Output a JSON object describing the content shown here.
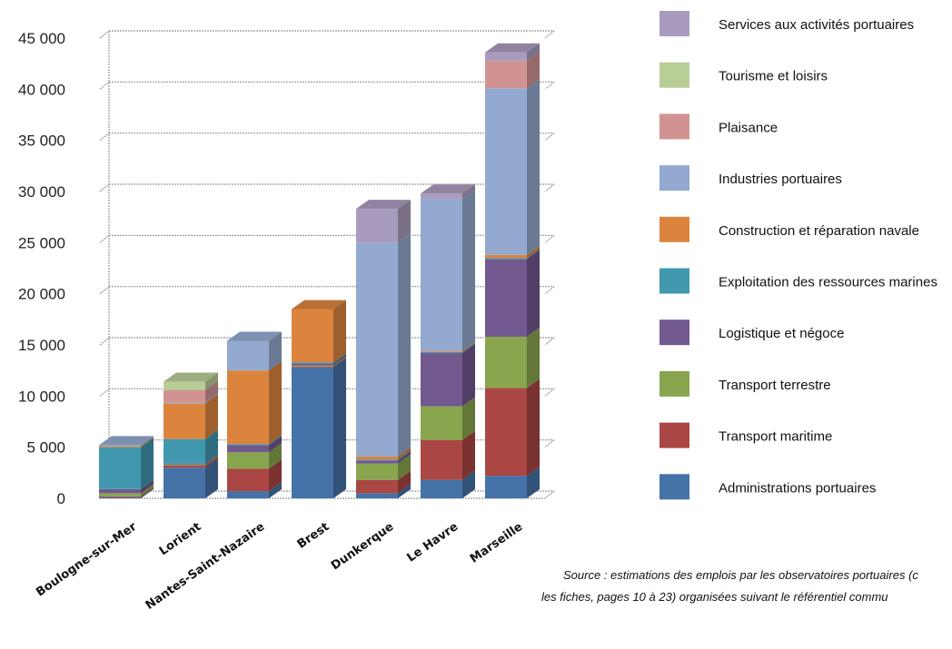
{
  "chart_data": {
    "type": "bar",
    "stacked": true,
    "three_d": true,
    "categories": [
      "Boulogne-sur-Mer",
      "Lorient",
      "Nantes-Saint-Nazaire",
      "Brest",
      "Dunkerque",
      "Le Havre",
      "Marseille"
    ],
    "ylim": [
      0,
      45000
    ],
    "yticks": [
      "0",
      "5 000",
      "10 000",
      "15 000",
      "20 000",
      "25 000",
      "30 000",
      "35 000",
      "40 000",
      "45 000"
    ],
    "grid": true,
    "legend_position": "right",
    "series": [
      {
        "name": "Administrations portuaires",
        "color": "#4572A7",
        "values": [
          100,
          3000,
          700,
          12800,
          500,
          1800,
          2200
        ]
      },
      {
        "name": "Transport maritime",
        "color": "#AA4643",
        "values": [
          100,
          200,
          2200,
          100,
          1300,
          3900,
          8600
        ]
      },
      {
        "name": "Transport terrestre",
        "color": "#89A54E",
        "values": [
          300,
          100,
          1600,
          100,
          1600,
          3300,
          5000
        ]
      },
      {
        "name": "Logistique et négoce",
        "color": "#71588F",
        "values": [
          400,
          100,
          700,
          200,
          300,
          5200,
          7600
        ]
      },
      {
        "name": "Exploitation des ressources marines",
        "color": "#4198AF",
        "values": [
          4100,
          2400,
          100,
          100,
          100,
          100,
          100
        ]
      },
      {
        "name": "Construction et réparation navale",
        "color": "#DB843D",
        "values": [
          100,
          3500,
          7200,
          5200,
          300,
          100,
          300
        ]
      },
      {
        "name": "Industries portuaires",
        "color": "#93A9CF",
        "values": [
          100,
          100,
          2900,
          0,
          20900,
          14900,
          16300
        ]
      },
      {
        "name": "Plaisance",
        "color": "#D19392",
        "values": [
          0,
          1200,
          0,
          0,
          0,
          0,
          2700
        ]
      },
      {
        "name": "Tourisme et loisirs",
        "color": "#B9CD96",
        "values": [
          0,
          800,
          0,
          0,
          0,
          0,
          0
        ]
      },
      {
        "name": "Services aux activités portuaires",
        "color": "#A99BBD",
        "values": [
          0,
          0,
          0,
          0,
          3300,
          500,
          800
        ]
      }
    ],
    "source_lines": [
      "Source :  estimations des emplois par les observatoires portuaires (c",
      "les fiches, pages 10 à 23) organisées suivant le référentiel commu"
    ]
  }
}
